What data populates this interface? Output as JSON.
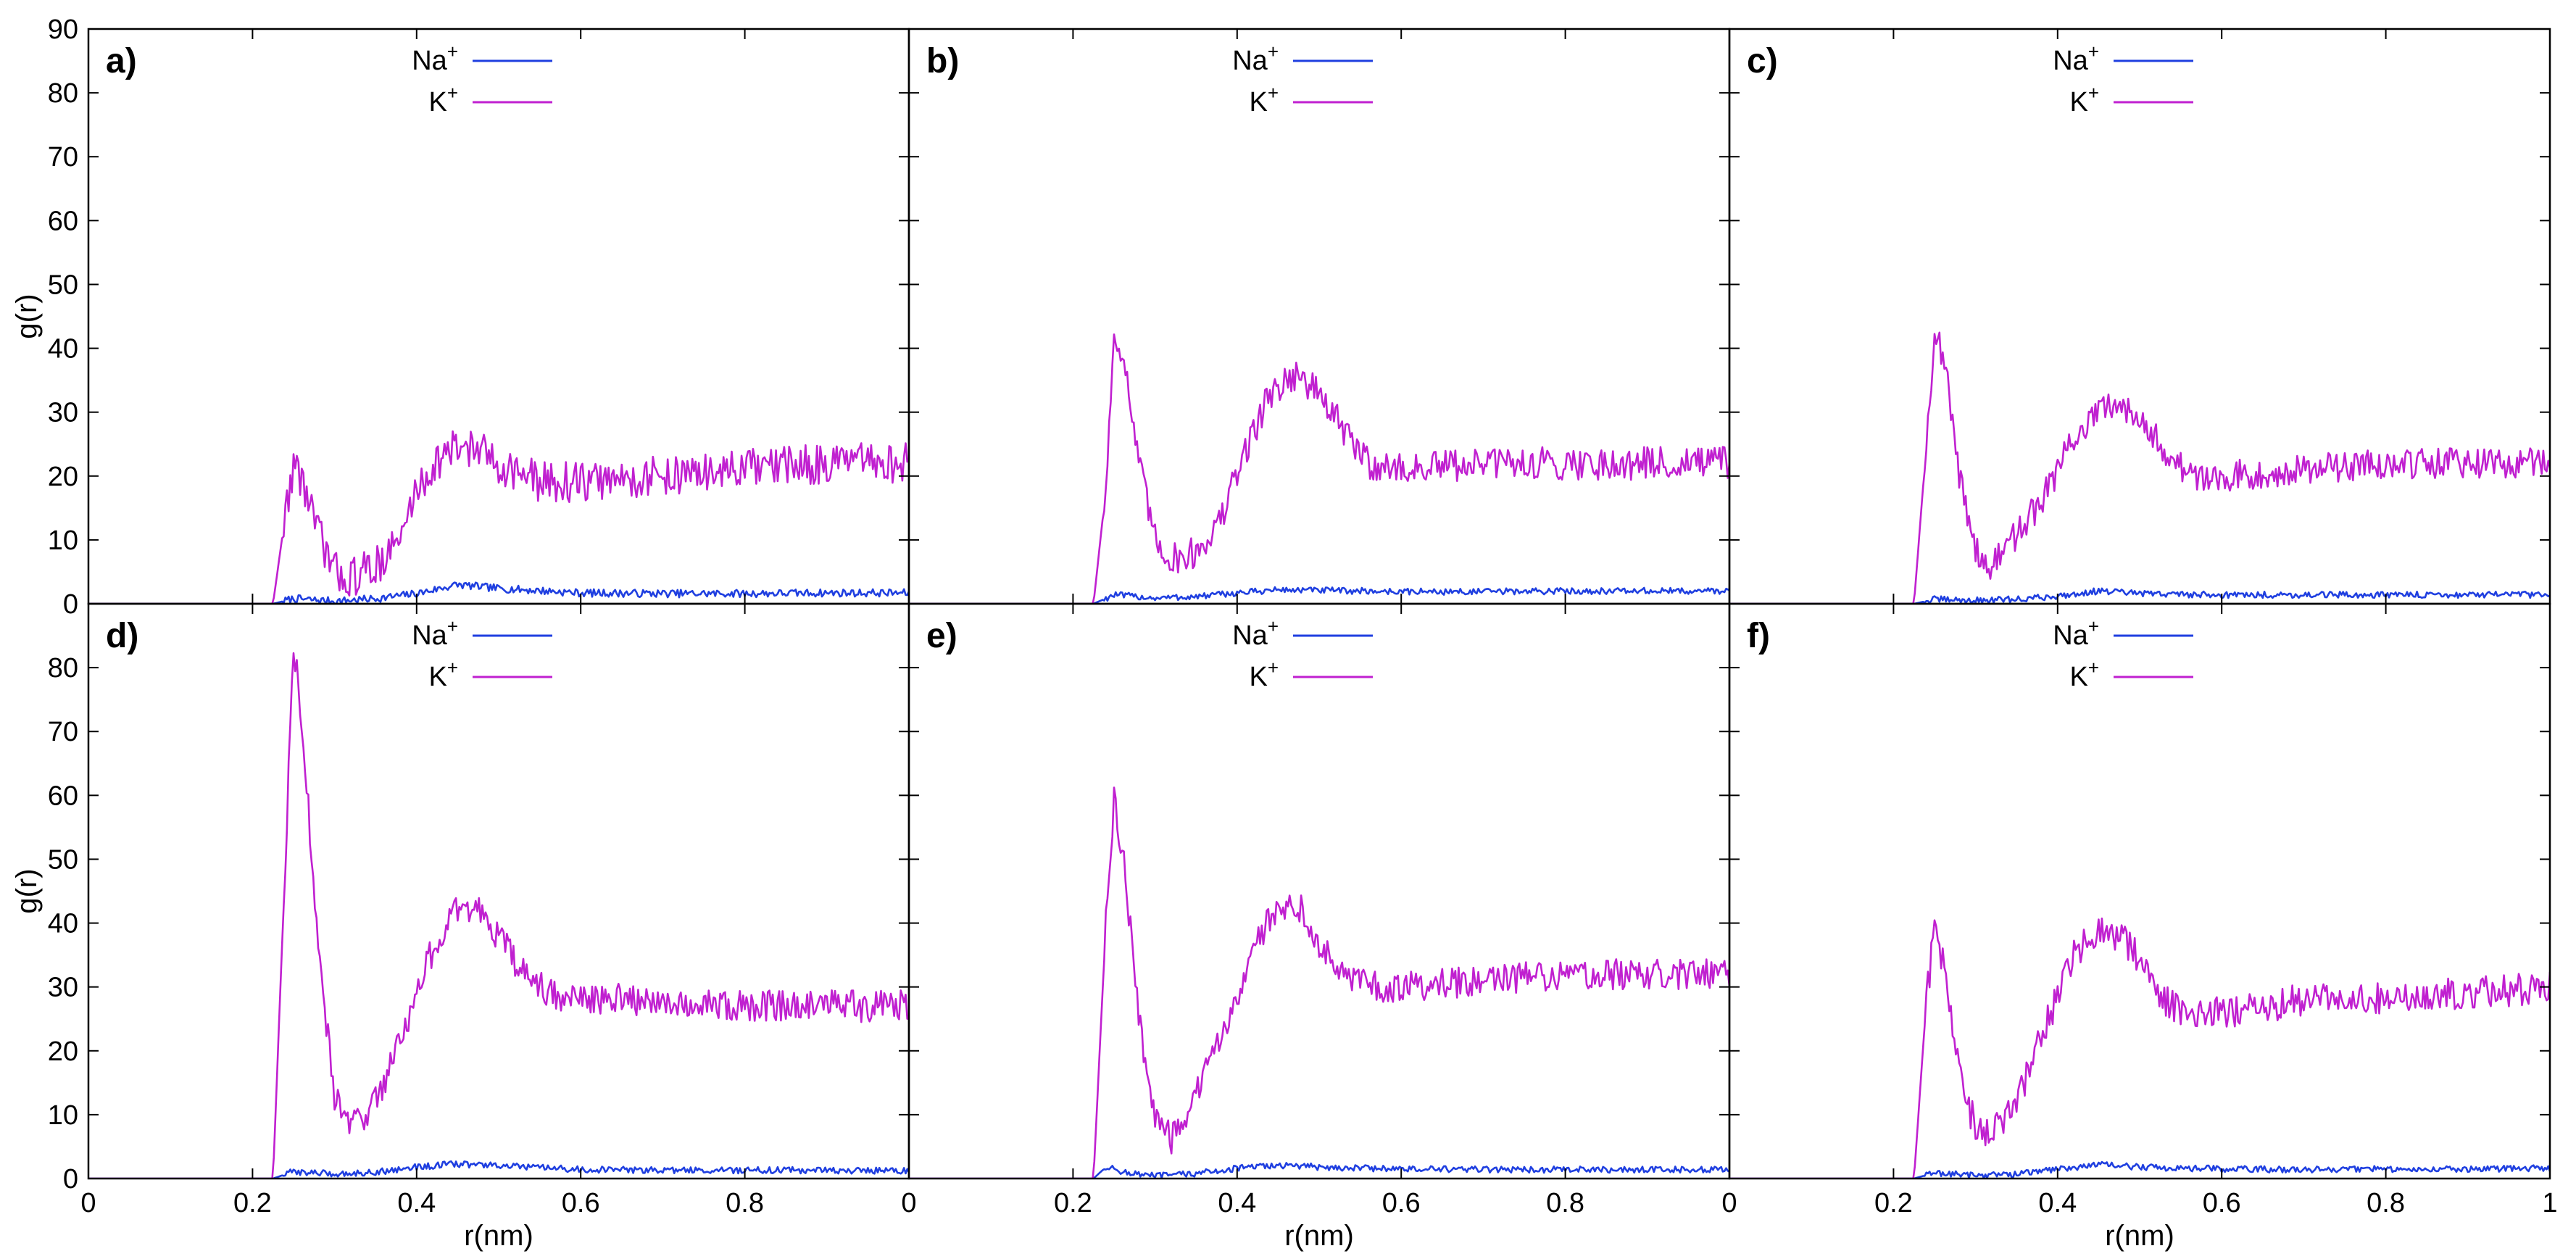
{
  "chart_data": [
    {
      "panel_label": "a)",
      "type": "line",
      "xlabel": "",
      "ylabel": "g(r)",
      "xlim": [
        0,
        1
      ],
      "ylim": [
        0,
        90
      ],
      "x_ticks": [
        "0",
        "0.2",
        "0.4",
        "0.6",
        "0.8",
        "1"
      ],
      "y_ticks": [
        "0",
        "10",
        "20",
        "30",
        "40",
        "50",
        "60",
        "70",
        "80",
        "90"
      ],
      "legend": [
        {
          "prefix": "Na",
          "sup": "+",
          "color": "#1f3fe0"
        },
        {
          "prefix": "K",
          "sup": "+",
          "color": "#c020d0"
        }
      ],
      "series": [
        {
          "name": "Na+",
          "color": "#1f3fe0",
          "onset": 0.225,
          "noise": 0.6,
          "x": [
            0,
            0.225,
            0.25,
            0.3,
            0.35,
            0.4,
            0.45,
            0.5,
            0.6,
            0.7,
            0.8,
            0.9,
            1.0
          ],
          "y": [
            0,
            0,
            0.8,
            0.4,
            0.8,
            1.6,
            3.0,
            2.4,
            1.7,
            1.6,
            1.6,
            1.7,
            1.7
          ]
        },
        {
          "name": "K+",
          "color": "#c020d0",
          "onset": 0.225,
          "noise": 3.2,
          "x": [
            0,
            0.225,
            0.24,
            0.25,
            0.262,
            0.28,
            0.3,
            0.32,
            0.35,
            0.38,
            0.4,
            0.43,
            0.46,
            0.5,
            0.55,
            0.6,
            0.7,
            0.8,
            0.9,
            1.0
          ],
          "y": [
            0,
            0,
            14,
            22,
            19,
            11,
            5,
            4,
            6,
            10,
            18,
            23,
            25,
            22,
            19,
            19,
            20,
            21,
            22,
            22
          ]
        }
      ]
    },
    {
      "panel_label": "b)",
      "type": "line",
      "xlabel": "",
      "ylabel": "",
      "xlim": [
        0,
        1
      ],
      "ylim": [
        0,
        90
      ],
      "x_ticks": [
        "0",
        "0.2",
        "0.4",
        "0.6",
        "0.8",
        "1"
      ],
      "y_ticks": [
        "0",
        "10",
        "20",
        "30",
        "40",
        "50",
        "60",
        "70",
        "80",
        "90"
      ],
      "legend": [
        {
          "prefix": "Na",
          "sup": "+",
          "color": "#1f3fe0"
        },
        {
          "prefix": "K",
          "sup": "+",
          "color": "#c020d0"
        }
      ],
      "series": [
        {
          "name": "Na+",
          "color": "#1f3fe0",
          "onset": 0.225,
          "noise": 0.5,
          "x": [
            0,
            0.225,
            0.25,
            0.3,
            0.35,
            0.4,
            0.45,
            0.5,
            0.6,
            0.7,
            0.8,
            0.9,
            1.0
          ],
          "y": [
            0,
            0,
            1.4,
            0.9,
            1.1,
            1.7,
            2.2,
            2.1,
            1.9,
            1.9,
            2.0,
            2.0,
            2.0
          ]
        },
        {
          "name": "K+",
          "color": "#c020d0",
          "onset": 0.225,
          "noise": 2.6,
          "x": [
            0,
            0.225,
            0.24,
            0.25,
            0.26,
            0.28,
            0.3,
            0.32,
            0.35,
            0.38,
            0.41,
            0.44,
            0.47,
            0.5,
            0.53,
            0.56,
            0.6,
            0.7,
            0.8,
            0.9,
            1.0
          ],
          "y": [
            0,
            0,
            18,
            42,
            40,
            22,
            10,
            7,
            8,
            13,
            24,
            33,
            36,
            33,
            27,
            22,
            21,
            22,
            22,
            22,
            22
          ]
        }
      ]
    },
    {
      "panel_label": "c)",
      "type": "line",
      "xlabel": "",
      "ylabel": "",
      "xlim": [
        0,
        1
      ],
      "ylim": [
        0,
        90
      ],
      "x_ticks": [
        "0",
        "0.2",
        "0.4",
        "0.6",
        "0.8",
        "1"
      ],
      "y_ticks": [
        "0",
        "10",
        "20",
        "30",
        "40",
        "50",
        "60",
        "70",
        "80",
        "90"
      ],
      "legend": [
        {
          "prefix": "Na",
          "sup": "+",
          "color": "#1f3fe0"
        },
        {
          "prefix": "K",
          "sup": "+",
          "color": "#c020d0"
        }
      ],
      "series": [
        {
          "name": "Na+",
          "color": "#1f3fe0",
          "onset": 0.225,
          "noise": 0.5,
          "x": [
            0,
            0.225,
            0.25,
            0.3,
            0.35,
            0.4,
            0.45,
            0.5,
            0.6,
            0.7,
            0.8,
            0.9,
            1.0
          ],
          "y": [
            0,
            0,
            0.7,
            0.5,
            0.7,
            1.2,
            2.0,
            1.6,
            1.4,
            1.4,
            1.4,
            1.4,
            1.4
          ]
        },
        {
          "name": "K+",
          "color": "#c020d0",
          "onset": 0.225,
          "noise": 2.4,
          "x": [
            0,
            0.225,
            0.24,
            0.25,
            0.262,
            0.28,
            0.3,
            0.315,
            0.35,
            0.38,
            0.42,
            0.45,
            0.48,
            0.5,
            0.53,
            0.56,
            0.6,
            0.7,
            0.8,
            0.9,
            1.0
          ],
          "y": [
            0,
            0,
            25,
            43,
            38,
            20,
            9,
            5,
            11,
            16,
            26,
            30,
            31,
            30,
            24,
            20,
            20,
            21,
            22,
            22,
            22
          ]
        }
      ]
    },
    {
      "panel_label": "d)",
      "type": "line",
      "xlabel": "r(nm)",
      "ylabel": "g(r)",
      "xlim": [
        0,
        1
      ],
      "ylim": [
        0,
        90
      ],
      "x_ticks": [
        "0",
        "0.2",
        "0.4",
        "0.6",
        "0.8",
        "1"
      ],
      "y_ticks": [
        "0",
        "10",
        "20",
        "30",
        "40",
        "50",
        "60",
        "70",
        "80",
        ""
      ],
      "legend": [
        {
          "prefix": "Na",
          "sup": "+",
          "color": "#1f3fe0"
        },
        {
          "prefix": "K",
          "sup": "+",
          "color": "#c020d0"
        }
      ],
      "series": [
        {
          "name": "Na+",
          "color": "#1f3fe0",
          "onset": 0.225,
          "noise": 0.5,
          "x": [
            0,
            0.225,
            0.25,
            0.3,
            0.35,
            0.4,
            0.45,
            0.5,
            0.6,
            0.7,
            0.8,
            0.9,
            1.0
          ],
          "y": [
            0,
            0,
            1.1,
            0.7,
            1.0,
            1.8,
            2.3,
            2.0,
            1.4,
            1.3,
            1.3,
            1.3,
            1.2
          ]
        },
        {
          "name": "K+",
          "color": "#c020d0",
          "onset": 0.225,
          "noise": 2.5,
          "x": [
            0,
            0.225,
            0.24,
            0.25,
            0.262,
            0.28,
            0.3,
            0.32,
            0.35,
            0.38,
            0.42,
            0.45,
            0.48,
            0.5,
            0.53,
            0.56,
            0.6,
            0.7,
            0.8,
            0.9,
            1.0
          ],
          "y": [
            0,
            0,
            50,
            84,
            70,
            35,
            13,
            8,
            12,
            22,
            36,
            42,
            42,
            38,
            32,
            29,
            28,
            28,
            27,
            27,
            27
          ]
        }
      ]
    },
    {
      "panel_label": "e)",
      "type": "line",
      "xlabel": "r(nm)",
      "ylabel": "",
      "xlim": [
        0,
        1
      ],
      "ylim": [
        0,
        90
      ],
      "x_ticks": [
        "0",
        "0.2",
        "0.4",
        "0.6",
        "0.8",
        "1"
      ],
      "y_ticks": [
        "0",
        "10",
        "20",
        "30",
        "40",
        "50",
        "60",
        "70",
        "80",
        ""
      ],
      "legend": [
        {
          "prefix": "Na",
          "sup": "+",
          "color": "#1f3fe0"
        },
        {
          "prefix": "K",
          "sup": "+",
          "color": "#c020d0"
        }
      ],
      "series": [
        {
          "name": "Na+",
          "color": "#1f3fe0",
          "onset": 0.225,
          "noise": 0.5,
          "x": [
            0,
            0.225,
            0.24,
            0.27,
            0.3,
            0.35,
            0.4,
            0.45,
            0.5,
            0.6,
            0.7,
            0.8,
            0.9,
            1.0
          ],
          "y": [
            0,
            0,
            1.8,
            0.8,
            0.4,
            0.8,
            1.6,
            2.1,
            1.8,
            1.5,
            1.4,
            1.4,
            1.4,
            1.4
          ]
        },
        {
          "name": "K+",
          "color": "#c020d0",
          "onset": 0.225,
          "noise": 2.4,
          "x": [
            0,
            0.225,
            0.24,
            0.25,
            0.262,
            0.28,
            0.3,
            0.32,
            0.35,
            0.38,
            0.42,
            0.45,
            0.48,
            0.5,
            0.53,
            0.56,
            0.6,
            0.7,
            0.8,
            0.9,
            1.0
          ],
          "y": [
            0,
            0,
            40,
            59,
            50,
            25,
            10,
            6,
            13,
            22,
            36,
            43,
            42,
            37,
            32,
            30,
            30,
            31,
            32,
            32,
            32
          ]
        }
      ]
    },
    {
      "panel_label": "f)",
      "type": "line",
      "xlabel": "r(nm)",
      "ylabel": "",
      "xlim": [
        0,
        1
      ],
      "ylim": [
        0,
        90
      ],
      "x_ticks": [
        "0",
        "0.2",
        "0.4",
        "0.6",
        "0.8",
        "1"
      ],
      "y_ticks": [
        "0",
        "10",
        "20",
        "30",
        "40",
        "50",
        "60",
        "70",
        "80",
        ""
      ],
      "legend": [
        {
          "prefix": "Na",
          "sup": "+",
          "color": "#1f3fe0"
        },
        {
          "prefix": "K",
          "sup": "+",
          "color": "#c020d0"
        }
      ],
      "series": [
        {
          "name": "Na+",
          "color": "#1f3fe0",
          "onset": 0.225,
          "noise": 0.5,
          "x": [
            0,
            0.225,
            0.25,
            0.3,
            0.35,
            0.4,
            0.45,
            0.5,
            0.6,
            0.7,
            0.8,
            0.9,
            1.0
          ],
          "y": [
            0,
            0,
            0.9,
            0.5,
            0.7,
            1.5,
            2.2,
            1.8,
            1.5,
            1.4,
            1.5,
            1.5,
            1.6
          ]
        },
        {
          "name": "K+",
          "color": "#c020d0",
          "onset": 0.225,
          "noise": 2.6,
          "x": [
            0,
            0.225,
            0.24,
            0.25,
            0.262,
            0.28,
            0.3,
            0.32,
            0.35,
            0.38,
            0.42,
            0.45,
            0.48,
            0.5,
            0.53,
            0.56,
            0.6,
            0.7,
            0.8,
            0.9,
            1.0
          ],
          "y": [
            0,
            0,
            28,
            39,
            33,
            16,
            8,
            7,
            12,
            22,
            35,
            39,
            38,
            34,
            28,
            26,
            26,
            28,
            28,
            29,
            30
          ]
        }
      ]
    }
  ]
}
